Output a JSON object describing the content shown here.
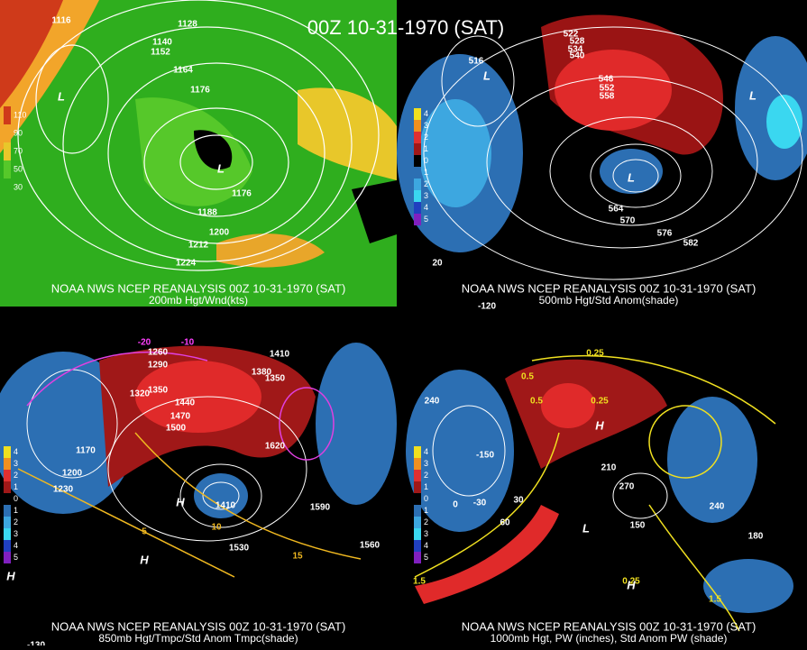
{
  "title": "00Z 10-31-1970 (SAT)",
  "panels": [
    {
      "caption": "NOAA NWS NCEP REANALYSIS 00Z 10-31-1970 (SAT)",
      "subtitle": "200mb Hgt/Wnd(kts)",
      "labels": [
        "1116",
        "1128",
        "1140",
        "1152",
        "1164",
        "1176",
        "1188",
        "1200",
        "1212",
        "1224",
        "1176",
        "L",
        "L"
      ],
      "legend": [
        "110",
        "90",
        "70",
        "50",
        "30"
      ]
    },
    {
      "caption": "NOAA NWS NCEP REANALYSIS 00Z 10-31-1970 (SAT)",
      "subtitle": "500mb Hgt/Std Anom(shade)",
      "labels": [
        "522",
        "528",
        "534",
        "540",
        "516",
        "546",
        "552",
        "558",
        "564",
        "570",
        "576",
        "582",
        "L",
        "L",
        "L",
        "20",
        "-120"
      ],
      "legend": [
        "4",
        "3",
        "2",
        "1",
        "0",
        "1",
        "2",
        "3",
        "4",
        "5"
      ]
    },
    {
      "caption": "NOAA NWS NCEP REANALYSIS 00Z 10-31-1970 (SAT)",
      "subtitle": "850mb Hgt/Tmpc/Std Anom Tmpc(shade)",
      "labels": [
        "-20",
        "-10",
        "1260",
        "1290",
        "1320",
        "1350",
        "1380",
        "1410",
        "1440",
        "1470",
        "1500",
        "1410",
        "1350",
        "1530",
        "1560",
        "1590",
        "1620",
        "1170",
        "1200",
        "1230",
        "5",
        "10",
        "15",
        "H",
        "H",
        "H",
        "-130"
      ],
      "legend": [
        "4",
        "3",
        "2",
        "1",
        "0",
        "1",
        "2",
        "3",
        "4",
        "5"
      ]
    },
    {
      "caption": "NOAA NWS NCEP REANALYSIS 00Z 10-31-1970 (SAT)",
      "subtitle": "1000mb Hgt, PW (inches), Std Anom PW (shade)",
      "labels": [
        "0.25",
        "0.5",
        "0.25",
        "0.5",
        "1.5",
        "1.5",
        "0.25",
        "-30",
        "-150",
        "0",
        "30",
        "60",
        "150",
        "180",
        "210",
        "240",
        "270",
        "240",
        "H",
        "H",
        "L"
      ],
      "legend": [
        "4",
        "3",
        "2",
        "1",
        "0",
        "1",
        "2",
        "3",
        "4",
        "5"
      ]
    }
  ]
}
